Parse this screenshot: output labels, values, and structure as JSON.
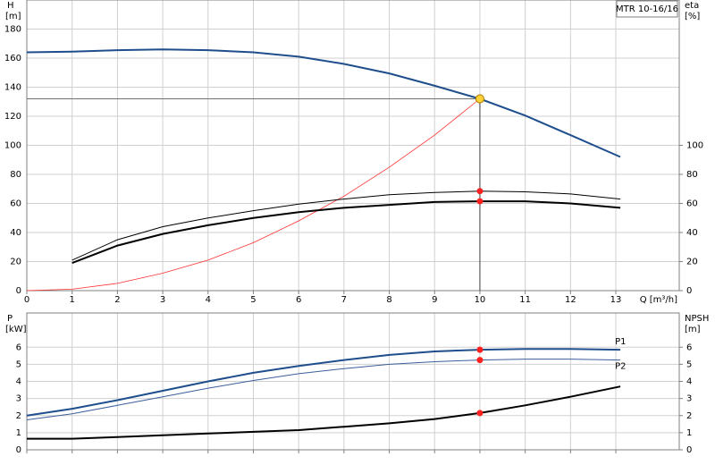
{
  "chart_data": [
    {
      "type": "line",
      "title": "MTR 10-16/16",
      "y_label": "H",
      "y_unit": "[m]",
      "y2_label": "eta",
      "y2_unit": "[%]",
      "x_label": "Q [m³/h]",
      "xlim": [
        0,
        14.4
      ],
      "xticks": [
        0,
        1,
        2,
        3,
        4,
        5,
        6,
        7,
        8,
        9,
        10,
        11,
        12,
        13
      ],
      "x_tick_labels": true,
      "ylim": [
        0,
        200
      ],
      "yticks": [
        0,
        20,
        40,
        60,
        80,
        100,
        120,
        140,
        160,
        180
      ],
      "y2lim": [
        0,
        200
      ],
      "y2ticks": [
        0,
        20,
        40,
        60,
        80,
        100
      ],
      "grid": true,
      "operating_point": {
        "x": 10,
        "y": 132
      },
      "series": [
        {
          "color": "#1f4e8c",
          "width": 2,
          "x": [
            0,
            1,
            2,
            3,
            4,
            5,
            6,
            7,
            8,
            9,
            10,
            11,
            12,
            13.1
          ],
          "values": [
            164,
            164.5,
            165.5,
            166,
            165.5,
            164,
            161,
            156,
            149.5,
            141,
            132,
            120.5,
            107,
            92
          ]
        },
        {
          "color": "#ff3030",
          "width": 0.8,
          "x": [
            0,
            1,
            2,
            3,
            4,
            5,
            6,
            7,
            8,
            9,
            10
          ],
          "values": [
            0,
            1,
            5,
            12,
            21,
            33,
            48,
            65,
            85,
            107,
            132
          ]
        },
        {
          "color": "#000000",
          "width": 1,
          "axis": "y2",
          "x": [
            1,
            2,
            3,
            4,
            5,
            6,
            7,
            8,
            9,
            10,
            11,
            12,
            13.1
          ],
          "values": [
            21,
            35,
            44,
            50,
            55,
            59.5,
            63,
            66,
            67.5,
            68.5,
            68,
            66.5,
            63
          ]
        },
        {
          "color": "#000000",
          "width": 2,
          "axis": "y2",
          "x": [
            1,
            2,
            3,
            4,
            5,
            6,
            7,
            8,
            9,
            10,
            11,
            12,
            13.1
          ],
          "values": [
            19,
            31,
            39,
            45,
            50,
            54,
            57,
            59,
            61,
            61.5,
            61.5,
            60,
            57
          ]
        }
      ]
    },
    {
      "type": "line",
      "y_label": "P",
      "y_unit": "[kW]",
      "y2_label": "NPSH",
      "y2_unit": "[m]",
      "xlim": [
        0,
        14.4
      ],
      "xticks": [
        0,
        1,
        2,
        3,
        4,
        5,
        6,
        7,
        8,
        9,
        10,
        11,
        12,
        13
      ],
      "x_tick_labels": false,
      "ylim": [
        0,
        8
      ],
      "yticks": [
        0,
        1,
        2,
        3,
        4,
        5,
        6
      ],
      "y2lim": [
        0,
        8
      ],
      "y2ticks": [
        0,
        1,
        2,
        3,
        4,
        5,
        6
      ],
      "grid": true,
      "operating_point": {
        "x": 10
      },
      "series": [
        {
          "name": "P1",
          "color": "#1f4e8c",
          "width": 2,
          "x": [
            0,
            1,
            2,
            3,
            4,
            5,
            6,
            7,
            8,
            9,
            10,
            11,
            12,
            13.1
          ],
          "values": [
            2.0,
            2.4,
            2.9,
            3.45,
            4.0,
            4.5,
            4.9,
            5.25,
            5.55,
            5.75,
            5.85,
            5.9,
            5.9,
            5.85
          ]
        },
        {
          "name": "P2",
          "color": "#3a5f9a",
          "width": 1,
          "x": [
            0,
            1,
            2,
            3,
            4,
            5,
            6,
            7,
            8,
            9,
            10,
            11,
            12,
            13.1
          ],
          "values": [
            1.75,
            2.1,
            2.6,
            3.1,
            3.6,
            4.05,
            4.45,
            4.75,
            5.0,
            5.15,
            5.25,
            5.3,
            5.3,
            5.25
          ]
        },
        {
          "color": "#000000",
          "width": 2,
          "axis": "y2",
          "x": [
            0,
            1,
            2,
            3,
            4,
            5,
            6,
            7,
            8,
            9,
            10,
            11,
            12,
            13.1
          ],
          "values": [
            0.65,
            0.65,
            0.75,
            0.85,
            0.95,
            1.05,
            1.15,
            1.35,
            1.55,
            1.8,
            2.15,
            2.6,
            3.1,
            3.7
          ]
        }
      ]
    }
  ]
}
